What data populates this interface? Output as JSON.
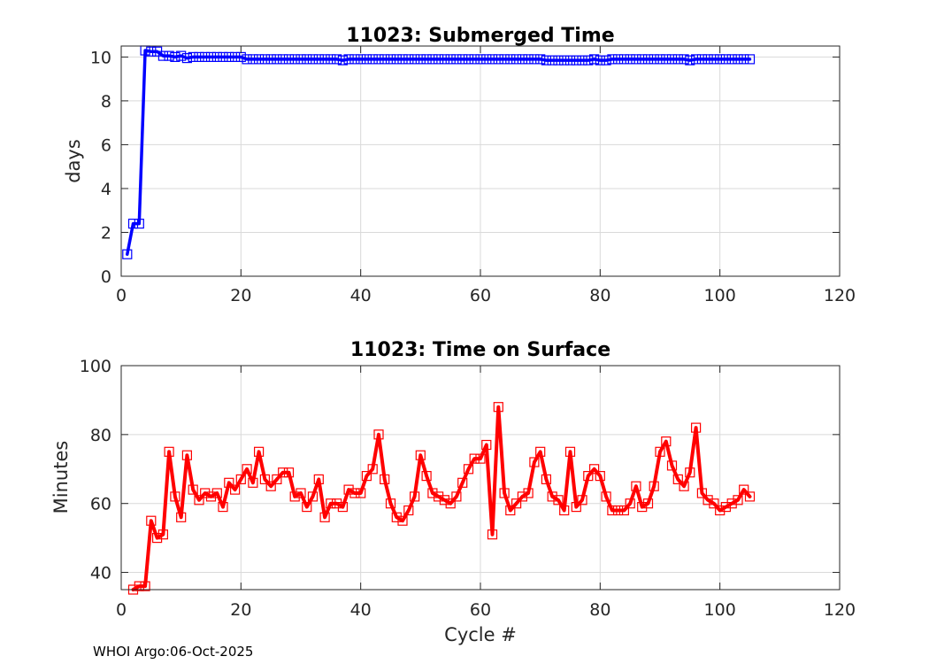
{
  "chart_data": [
    {
      "type": "line",
      "title": "11023: Submerged Time",
      "xlabel": "",
      "ylabel": "days",
      "xlim": [
        0,
        120
      ],
      "ylim": [
        0,
        10.5
      ],
      "xticks": [
        0,
        20,
        40,
        60,
        80,
        100,
        120
      ],
      "yticks": [
        0,
        2,
        4,
        6,
        8,
        10
      ],
      "grid": true,
      "series": [
        {
          "color": "#0000ff",
          "marker": "square",
          "x": [
            1,
            2,
            3,
            4,
            5,
            6,
            7,
            8,
            9,
            10,
            11,
            12,
            13,
            14,
            15,
            16,
            17,
            18,
            19,
            20,
            21,
            22,
            23,
            24,
            25,
            26,
            27,
            28,
            29,
            30,
            31,
            32,
            33,
            34,
            35,
            36,
            37,
            38,
            39,
            40,
            41,
            42,
            43,
            44,
            45,
            46,
            47,
            48,
            49,
            50,
            51,
            52,
            53,
            54,
            55,
            56,
            57,
            58,
            59,
            60,
            61,
            62,
            63,
            64,
            65,
            66,
            67,
            68,
            69,
            70,
            71,
            72,
            73,
            74,
            75,
            76,
            77,
            78,
            79,
            80,
            81,
            82,
            83,
            84,
            85,
            86,
            87,
            88,
            89,
            90,
            91,
            92,
            93,
            94,
            95,
            96,
            97,
            98,
            99,
            100,
            101,
            102,
            103,
            104,
            105
          ],
          "values": [
            1.0,
            2.4,
            2.4,
            10.3,
            10.25,
            10.25,
            10.05,
            10.05,
            10.0,
            10.05,
            9.95,
            10.0,
            10.0,
            10.0,
            10.0,
            10.0,
            10.0,
            10.0,
            10.0,
            10.0,
            9.9,
            9.9,
            9.9,
            9.9,
            9.9,
            9.9,
            9.9,
            9.9,
            9.9,
            9.9,
            9.9,
            9.9,
            9.9,
            9.9,
            9.9,
            9.9,
            9.85,
            9.9,
            9.9,
            9.9,
            9.9,
            9.9,
            9.9,
            9.9,
            9.9,
            9.9,
            9.9,
            9.9,
            9.9,
            9.9,
            9.9,
            9.9,
            9.9,
            9.9,
            9.9,
            9.9,
            9.9,
            9.9,
            9.9,
            9.9,
            9.9,
            9.9,
            9.9,
            9.9,
            9.9,
            9.9,
            9.9,
            9.9,
            9.9,
            9.9,
            9.85,
            9.85,
            9.85,
            9.85,
            9.85,
            9.85,
            9.85,
            9.85,
            9.9,
            9.85,
            9.85,
            9.9,
            9.9,
            9.9,
            9.9,
            9.9,
            9.9,
            9.9,
            9.9,
            9.9,
            9.9,
            9.9,
            9.9,
            9.9,
            9.85,
            9.9,
            9.9,
            9.9,
            9.9,
            9.9,
            9.9,
            9.9,
            9.9,
            9.9,
            9.9
          ]
        }
      ]
    },
    {
      "type": "line",
      "title": "11023: Time on Surface",
      "xlabel": "Cycle #",
      "ylabel": "Minutes",
      "xlim": [
        0,
        120
      ],
      "ylim": [
        35,
        100
      ],
      "xticks": [
        0,
        20,
        40,
        60,
        80,
        100,
        120
      ],
      "yticks": [
        40,
        60,
        80,
        100
      ],
      "grid": true,
      "series": [
        {
          "color": "#ff0000",
          "marker": "square",
          "x": [
            2,
            3,
            4,
            5,
            6,
            7,
            8,
            9,
            10,
            11,
            12,
            13,
            14,
            15,
            16,
            17,
            18,
            19,
            20,
            21,
            22,
            23,
            24,
            25,
            26,
            27,
            28,
            29,
            30,
            31,
            32,
            33,
            34,
            35,
            36,
            37,
            38,
            39,
            40,
            41,
            42,
            43,
            44,
            45,
            46,
            47,
            48,
            49,
            50,
            51,
            52,
            53,
            54,
            55,
            56,
            57,
            58,
            59,
            60,
            61,
            62,
            63,
            64,
            65,
            66,
            67,
            68,
            69,
            70,
            71,
            72,
            73,
            74,
            75,
            76,
            77,
            78,
            79,
            80,
            81,
            82,
            83,
            84,
            85,
            86,
            87,
            88,
            89,
            90,
            91,
            92,
            93,
            94,
            95,
            96,
            97,
            98,
            99,
            100,
            101,
            102,
            103,
            104,
            105
          ],
          "values": [
            35,
            36,
            36,
            55,
            50,
            51,
            75,
            62,
            56,
            74,
            64,
            61,
            63,
            62,
            63,
            59,
            66,
            64,
            67,
            70,
            66,
            75,
            67,
            65,
            67,
            69,
            69,
            62,
            63,
            59,
            62,
            67,
            56,
            60,
            60,
            59,
            64,
            63,
            63,
            68,
            70,
            80,
            67,
            60,
            56,
            55,
            58,
            62,
            74,
            68,
            63,
            62,
            61,
            60,
            62,
            66,
            70,
            73,
            73,
            77,
            51,
            88,
            63,
            58,
            60,
            62,
            63,
            72,
            75,
            67,
            62,
            61,
            58,
            75,
            59,
            61,
            68,
            70,
            68,
            62,
            58,
            58,
            58,
            60,
            65,
            59,
            60,
            65,
            75,
            78,
            71,
            67,
            65,
            69,
            82,
            63,
            61,
            60,
            58,
            59,
            60,
            61,
            64,
            62
          ]
        }
      ]
    }
  ],
  "footer": "WHOI Argo:06-Oct-2025"
}
